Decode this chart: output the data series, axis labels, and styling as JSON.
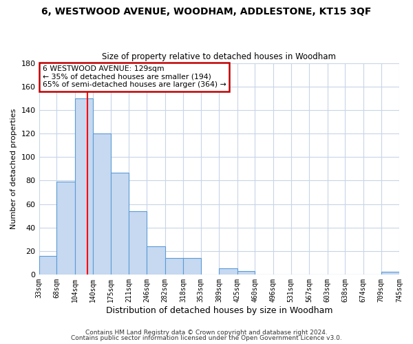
{
  "title": "6, WESTWOOD AVENUE, WOODHAM, ADDLESTONE, KT15 3QF",
  "subtitle": "Size of property relative to detached houses in Woodham",
  "xlabel": "Distribution of detached houses by size in Woodham",
  "ylabel": "Number of detached properties",
  "bar_color": "#c6d9f1",
  "bar_edge_color": "#5b9bd5",
  "vline_x": 129,
  "vline_color": "red",
  "bin_edges": [
    33,
    68,
    104,
    140,
    175,
    211,
    246,
    282,
    318,
    353,
    389,
    425,
    460,
    496,
    531,
    567,
    603,
    638,
    674,
    709,
    745
  ],
  "bin_labels": [
    "33sqm",
    "68sqm",
    "104sqm",
    "140sqm",
    "175sqm",
    "211sqm",
    "246sqm",
    "282sqm",
    "318sqm",
    "353sqm",
    "389sqm",
    "425sqm",
    "460sqm",
    "496sqm",
    "531sqm",
    "567sqm",
    "603sqm",
    "638sqm",
    "674sqm",
    "709sqm",
    "745sqm"
  ],
  "bar_heights": [
    16,
    79,
    150,
    120,
    87,
    54,
    24,
    14,
    14,
    0,
    5,
    3,
    0,
    0,
    0,
    0,
    0,
    0,
    0,
    2
  ],
  "ylim": [
    0,
    180
  ],
  "yticks": [
    0,
    20,
    40,
    60,
    80,
    100,
    120,
    140,
    160,
    180
  ],
  "annotation_text": "6 WESTWOOD AVENUE: 129sqm\n← 35% of detached houses are smaller (194)\n65% of semi-detached houses are larger (364) →",
  "annotation_box_color": "white",
  "annotation_box_edge": "#c00000",
  "footer1": "Contains HM Land Registry data © Crown copyright and database right 2024.",
  "footer2": "Contains public sector information licensed under the Open Government Licence v3.0.",
  "bg_color": "white",
  "grid_color": "#c8d4e8"
}
